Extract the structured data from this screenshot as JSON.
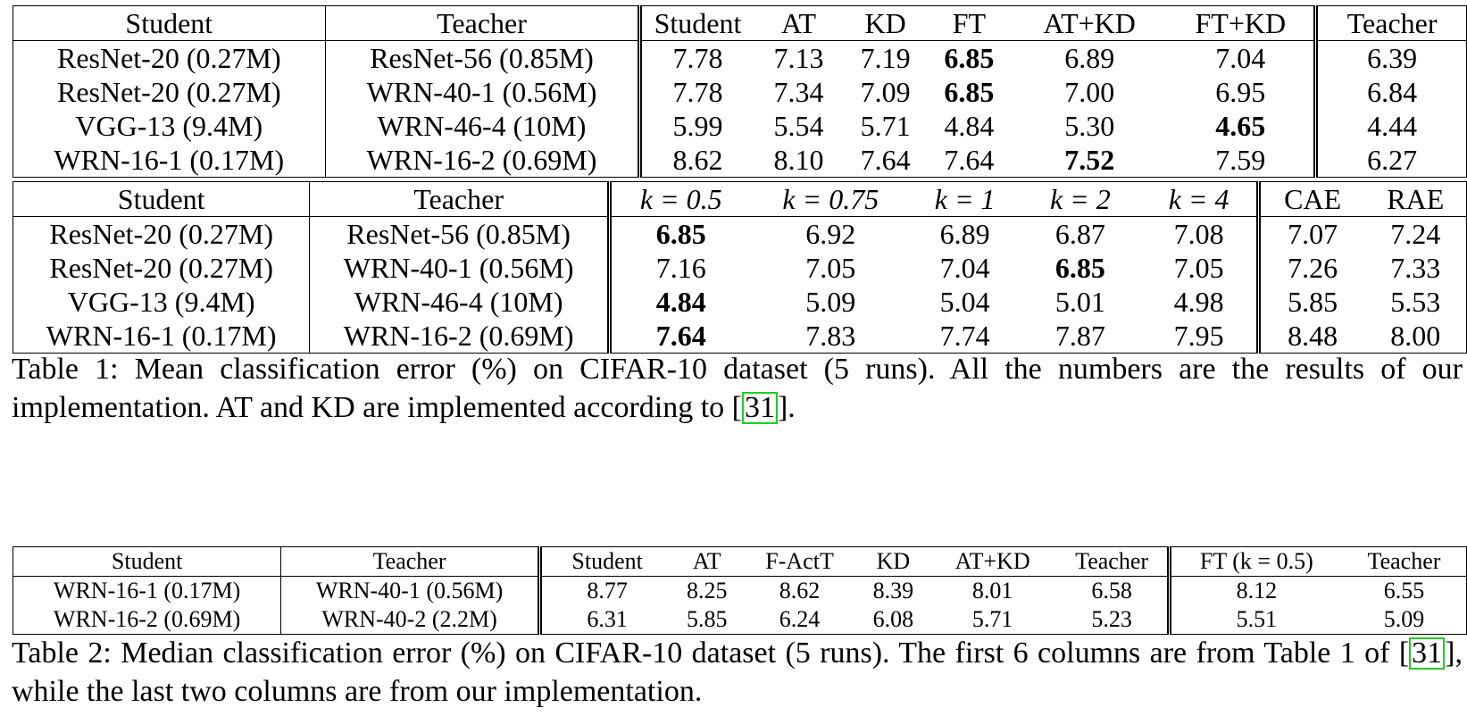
{
  "table1_top": {
    "headers": [
      "Student",
      "Teacher",
      "Student",
      "AT",
      "KD",
      "FT",
      "AT+KD",
      "FT+KD",
      "Teacher"
    ],
    "rows": [
      [
        "ResNet-20 (0.27M)",
        "ResNet-56 (0.85M)",
        "7.78",
        "7.13",
        "7.19",
        "6.85",
        "6.89",
        "7.04",
        "6.39"
      ],
      [
        "ResNet-20 (0.27M)",
        "WRN-40-1 (0.56M)",
        "7.78",
        "7.34",
        "7.09",
        "6.85",
        "7.00",
        "6.95",
        "6.84"
      ],
      [
        "VGG-13 (9.4M)",
        "WRN-46-4 (10M)",
        "5.99",
        "5.54",
        "5.71",
        "4.84",
        "5.30",
        "4.65",
        "4.44"
      ],
      [
        "WRN-16-1 (0.17M)",
        "WRN-16-2 (0.69M)",
        "8.62",
        "8.10",
        "7.64",
        "7.64",
        "7.52",
        "7.59",
        "6.27"
      ]
    ]
  },
  "table1_bottom": {
    "headers": [
      "Student",
      "Teacher",
      "k = 0.5",
      "k = 0.75",
      "k = 1",
      "k = 2",
      "k = 4",
      "CAE",
      "RAE"
    ],
    "rows": [
      [
        "ResNet-20 (0.27M)",
        "ResNet-56 (0.85M)",
        "6.85",
        "6.92",
        "6.89",
        "6.87",
        "7.08",
        "7.07",
        "7.24"
      ],
      [
        "ResNet-20 (0.27M)",
        "WRN-40-1 (0.56M)",
        "7.16",
        "7.05",
        "7.04",
        "6.85",
        "7.05",
        "7.26",
        "7.33"
      ],
      [
        "VGG-13 (9.4M)",
        "WRN-46-4 (10M)",
        "4.84",
        "5.09",
        "5.04",
        "5.01",
        "4.98",
        "5.85",
        "5.53"
      ],
      [
        "WRN-16-1 (0.17M)",
        "WRN-16-2 (0.69M)",
        "7.64",
        "7.83",
        "7.74",
        "7.87",
        "7.95",
        "8.48",
        "8.00"
      ]
    ]
  },
  "caption1": {
    "text_before": "Table 1: Mean classification error (%) on CIFAR-10 dataset (5 runs). All the numbers are the results of our implementation. AT and KD are implemented according to [",
    "ref": "31",
    "text_after": "]."
  },
  "table2": {
    "headers": [
      "Student",
      "Teacher",
      "Student",
      "AT",
      "F-ActT",
      "KD",
      "AT+KD",
      "Teacher",
      "FT (k = 0.5)",
      "Teacher"
    ],
    "rows": [
      [
        "WRN-16-1 (0.17M)",
        "WRN-40-1 (0.56M)",
        "8.77",
        "8.25",
        "8.62",
        "8.39",
        "8.01",
        "6.58",
        "8.12",
        "6.55"
      ],
      [
        "WRN-16-2 (0.69M)",
        "WRN-40-2 (2.2M)",
        "6.31",
        "5.85",
        "6.24",
        "6.08",
        "5.71",
        "5.23",
        "5.51",
        "5.09"
      ]
    ]
  },
  "caption2": {
    "text_before": "Table 2: Median classification error (%) on CIFAR-10 dataset (5 runs). The first 6 columns are from Table 1 of [",
    "ref": "31",
    "text_after": "], while the last two columns are from our implementation."
  }
}
